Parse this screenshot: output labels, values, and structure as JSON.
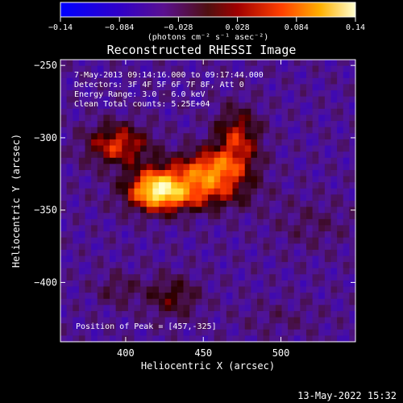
{
  "chart_data": {
    "type": "heatmap",
    "title": "Reconstructed RHESSI Image",
    "xlabel": "Heliocentric X (arcsec)",
    "ylabel": "Heliocentric Y (arcsec)",
    "xlim": [
      358,
      548
    ],
    "ylim": [
      -441,
      -246
    ],
    "xticks": [
      400,
      450,
      500
    ],
    "yticks": [
      -250,
      -300,
      -350,
      -400
    ],
    "colorbar": {
      "min": -0.14,
      "max": 0.14,
      "ticks": [
        "-0.14",
        "-0.084",
        "-0.028",
        "0.028",
        "0.084",
        "0.14"
      ],
      "unit_label": "(photons cm⁻² s⁻¹ asec⁻²)"
    },
    "annotations": [
      "7-May-2013 09:14:16.000 to 09:17:44.000",
      "Detectors: 3F 4F 5F 6F 7F 8F, Att 0",
      "Energy Range: 3.0 - 6.0 keV",
      "Clean     Total counts: 5.25E+04"
    ],
    "peak_label": "Position of Peak = [457,-325]",
    "sources": [
      {
        "x": 420,
        "y": -335,
        "sx": 12,
        "sy": 10,
        "amp": 0.14
      },
      {
        "x": 455,
        "y": -323,
        "sx": 16,
        "sy": 10,
        "amp": 0.12
      },
      {
        "x": 395,
        "y": -305,
        "sx": 14,
        "sy": 10,
        "amp": 0.09
      },
      {
        "x": 472,
        "y": -300,
        "sx": 10,
        "sy": 14,
        "amp": 0.08
      },
      {
        "x": 440,
        "y": -340,
        "sx": 25,
        "sy": 8,
        "amp": 0.07
      },
      {
        "x": 430,
        "y": -410,
        "sx": 12,
        "sy": 10,
        "amp": 0.05
      },
      {
        "x": 395,
        "y": -405,
        "sx": 10,
        "sy": 8,
        "amp": 0.03
      },
      {
        "x": 520,
        "y": -360,
        "sx": 18,
        "sy": 12,
        "amp": 0.02
      },
      {
        "x": 500,
        "y": -425,
        "sx": 20,
        "sy": 8,
        "amp": 0.015
      }
    ],
    "background": -0.05
  },
  "timestamp": "13-May-2022 15:32"
}
